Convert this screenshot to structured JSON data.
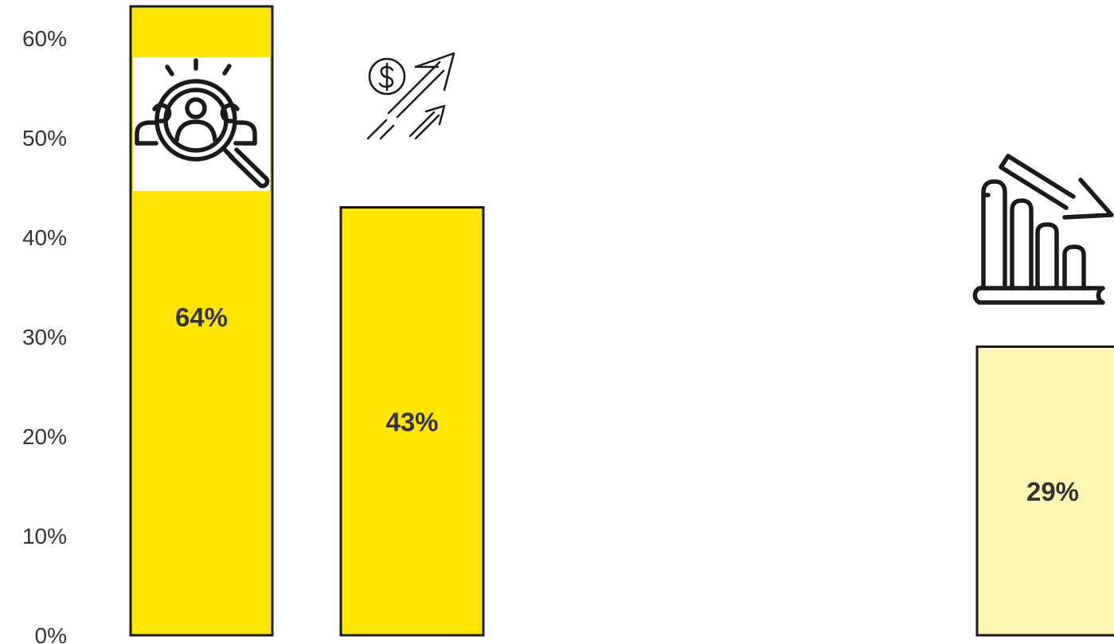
{
  "chart_data": {
    "type": "bar",
    "title": "",
    "xlabel": "",
    "ylabel": "",
    "ylim": [
      0,
      0.6
    ],
    "grid": false,
    "legend": "none",
    "y_ticks": [
      "0%",
      "10%",
      "20%",
      "30%",
      "40%",
      "50%",
      "60%"
    ],
    "y_tick_values": [
      0,
      0.1,
      0.2,
      0.3,
      0.4,
      0.5,
      0.6
    ],
    "bars": [
      {
        "value": 0.64,
        "label": "64%",
        "color": "#FFE600",
        "icon": "person-search-icon"
      },
      {
        "value": 0.43,
        "label": "43%",
        "color": "#FFE600",
        "icon": "dollar-growth-arrow-icon"
      },
      {
        "value": 0.29,
        "label": "29%",
        "color": "#FFF5B3",
        "icon": "bar-chart-decline-icon"
      }
    ]
  }
}
